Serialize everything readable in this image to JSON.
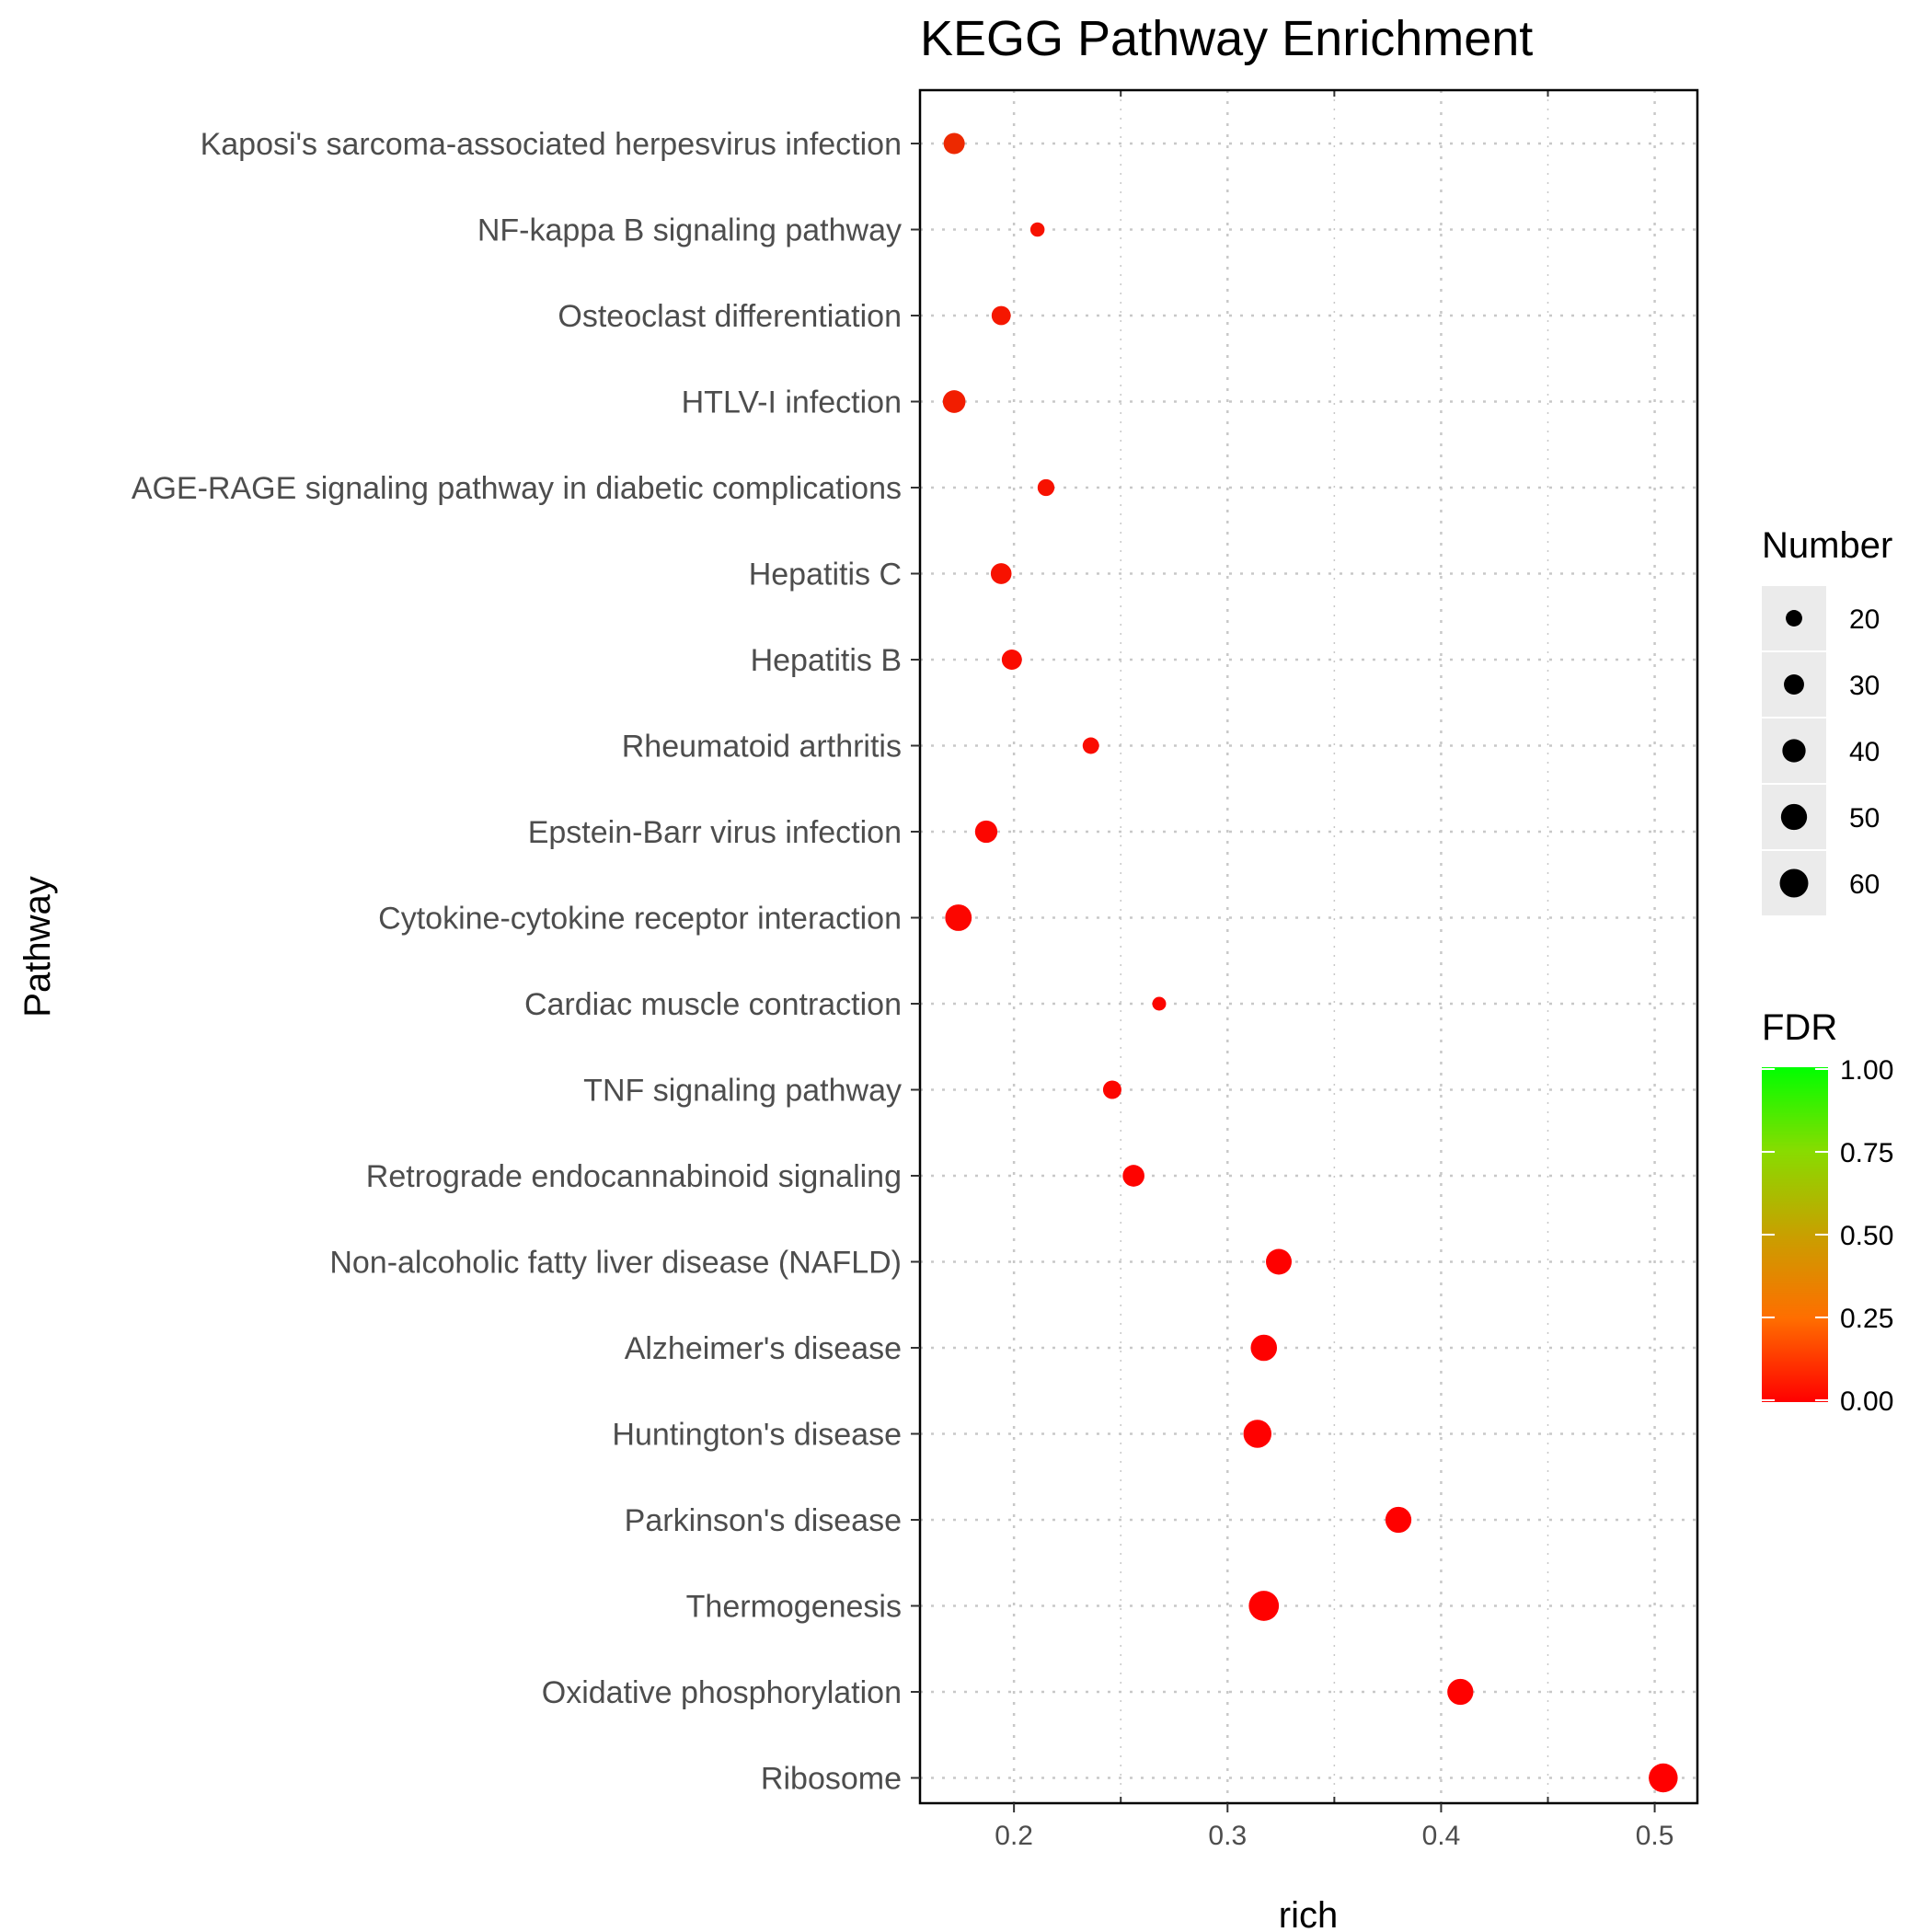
{
  "chart_data": {
    "type": "scatter",
    "title": "KEGG Pathway Enrichment",
    "xlabel": "rich",
    "ylabel": "Pathway",
    "xlim": [
      0.156,
      0.52
    ],
    "xticks": [
      0.2,
      0.3,
      0.4,
      0.5
    ],
    "x_tick_labels": [
      "0.2",
      "0.3",
      "0.4",
      "0.5"
    ],
    "grid": true,
    "categories": [
      "Kaposi's sarcoma-associated herpesvirus infection",
      "NF-kappa B signaling pathway",
      "Osteoclast differentiation",
      "HTLV-I infection",
      "AGE-RAGE signaling pathway in diabetic complications",
      "Hepatitis C",
      "Hepatitis B",
      "Rheumatoid arthritis",
      "Epstein-Barr virus infection",
      "Cytokine-cytokine receptor interaction",
      "Cardiac muscle contraction",
      "TNF signaling pathway",
      "Retrograde endocannabinoid signaling",
      "Non-alcoholic fatty liver disease (NAFLD)",
      "Alzheimer's disease",
      "Huntington's disease",
      "Parkinson's disease",
      "Thermogenesis",
      "Oxidative phosphorylation",
      "Ribosome"
    ],
    "points": [
      {
        "pathway": "Kaposi's sarcoma-associated herpesvirus infection",
        "rich": 0.172,
        "number": 33,
        "fdr": 0.07
      },
      {
        "pathway": "NF-kappa B signaling pathway",
        "rich": 0.211,
        "number": 15,
        "fdr": 0.03
      },
      {
        "pathway": "Osteoclast differentiation",
        "rich": 0.194,
        "number": 27,
        "fdr": 0.04
      },
      {
        "pathway": "HTLV-I infection",
        "rich": 0.172,
        "number": 38,
        "fdr": 0.05
      },
      {
        "pathway": "AGE-RAGE signaling pathway in diabetic complications",
        "rich": 0.215,
        "number": 21,
        "fdr": 0.03
      },
      {
        "pathway": "Hepatitis C",
        "rich": 0.194,
        "number": 32,
        "fdr": 0.03
      },
      {
        "pathway": "Hepatitis B",
        "rich": 0.199,
        "number": 30,
        "fdr": 0.02
      },
      {
        "pathway": "Rheumatoid arthritis",
        "rich": 0.236,
        "number": 20,
        "fdr": 0.02
      },
      {
        "pathway": "Epstein-Barr virus infection",
        "rich": 0.187,
        "number": 37,
        "fdr": 0.01
      },
      {
        "pathway": "Cytokine-cytokine receptor interaction",
        "rich": 0.174,
        "number": 52,
        "fdr": 0.01
      },
      {
        "pathway": "Cardiac muscle contraction",
        "rich": 0.268,
        "number": 14,
        "fdr": 0.01
      },
      {
        "pathway": "TNF signaling pathway",
        "rich": 0.246,
        "number": 25,
        "fdr": 0.01
      },
      {
        "pathway": "Retrograde endocannabinoid signaling",
        "rich": 0.256,
        "number": 35,
        "fdr": 0.005
      },
      {
        "pathway": "Non-alcoholic fatty liver disease (NAFLD)",
        "rich": 0.324,
        "number": 49,
        "fdr": 0.002
      },
      {
        "pathway": "Alzheimer's disease",
        "rich": 0.317,
        "number": 51,
        "fdr": 0.002
      },
      {
        "pathway": "Huntington's disease",
        "rich": 0.314,
        "number": 58,
        "fdr": 0.001
      },
      {
        "pathway": "Parkinson's disease",
        "rich": 0.38,
        "number": 50,
        "fdr": 0.001
      },
      {
        "pathway": "Thermogenesis",
        "rich": 0.317,
        "number": 67,
        "fdr": 0.001
      },
      {
        "pathway": "Oxidative phosphorylation",
        "rich": 0.409,
        "number": 50,
        "fdr": 0.001
      },
      {
        "pathway": "Ribosome",
        "rich": 0.504,
        "number": 62,
        "fdr": 0.0005
      }
    ],
    "legend_size": {
      "title": "Number",
      "values": [
        20,
        30,
        40,
        50,
        60
      ],
      "labels": [
        "20",
        "30",
        "40",
        "50",
        "60"
      ]
    },
    "legend_color": {
      "title": "FDR",
      "range": [
        0,
        1
      ],
      "ticks": [
        0,
        0.25,
        0.5,
        0.75,
        1
      ],
      "tick_labels": [
        "0.00",
        "0.25",
        "0.50",
        "0.75",
        "1.00"
      ],
      "low_color": "#ff0000",
      "high_color": "#00ff00"
    }
  }
}
